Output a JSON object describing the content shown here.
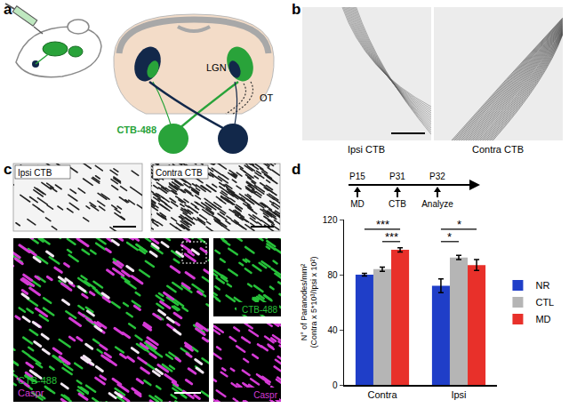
{
  "figure": {
    "panels": {
      "a": {
        "letter": "a",
        "labels": {
          "tracer": "CTB-488",
          "nucleus": "LGN",
          "tract": "OT"
        }
      },
      "b": {
        "letter": "b",
        "images": [
          "Ipsi CTB",
          "Contra CTB"
        ]
      },
      "c": {
        "letter": "c",
        "images": [
          "Ipsi CTB",
          "Contra CTB"
        ],
        "merge_channels": [
          "CTB-488",
          "Caspr"
        ],
        "split_channels": [
          "CTB-488",
          "Caspr"
        ]
      },
      "d": {
        "letter": "d",
        "timeline": [
          {
            "day": "P15",
            "event": "MD"
          },
          {
            "day": "P31",
            "event": "CTB"
          },
          {
            "day": "P32",
            "event": "Analyze"
          }
        ]
      }
    }
  },
  "chart_data": {
    "type": "bar",
    "categories": [
      "Contra",
      "Ipsi"
    ],
    "series": [
      {
        "name": "NR",
        "color": "#1f3ec8",
        "values": [
          80,
          72
        ],
        "errors": [
          1,
          5
        ]
      },
      {
        "name": "CTL",
        "color": "#b5b5b5",
        "values": [
          84,
          92.5
        ],
        "errors": [
          1.5,
          1.5
        ]
      },
      {
        "name": "MD",
        "color": "#e8302a",
        "values": [
          98,
          87
        ],
        "errors": [
          1.5,
          4
        ]
      }
    ],
    "ylabel": [
      "N° of Paranodes/mm²",
      "(Contra x 5*10³/Ipsi x 10²)"
    ],
    "ylim": [
      0,
      120
    ],
    "yticks": [
      0,
      40,
      80,
      120
    ],
    "grid": false,
    "legend": "right",
    "significance": [
      {
        "category": "Contra",
        "from": "NR",
        "to": "MD",
        "y": 113,
        "text": "***"
      },
      {
        "category": "Contra",
        "from": "CTL",
        "to": "MD",
        "y": 104,
        "text": "***"
      },
      {
        "category": "Ipsi",
        "from": "NR",
        "to": "MD",
        "y": 113,
        "text": "*"
      },
      {
        "category": "Ipsi",
        "from": "NR",
        "to": "CTL",
        "y": 104,
        "text": "*"
      }
    ]
  }
}
